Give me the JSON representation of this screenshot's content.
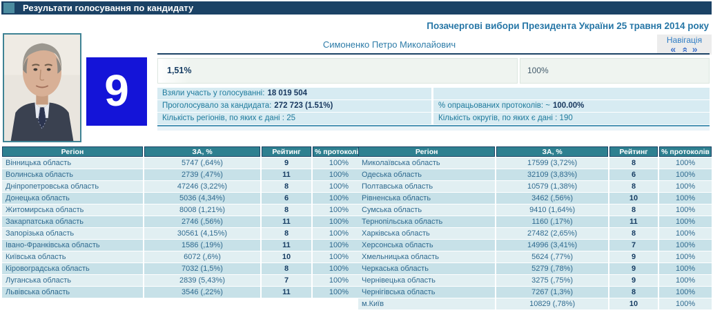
{
  "titlebar": {
    "title": "Результати голосування по кандидату"
  },
  "election_title": "Позачергові вибори Президента України 25 травня 2014 року",
  "navigation": {
    "label": "Навігація",
    "prev_icon": "«",
    "up_icon": "»",
    "next_icon": "»"
  },
  "candidate": {
    "name": "Симоненко Петро Миколайович",
    "number": "9",
    "vote_percent": "1,51%",
    "protocols_percent": "100%"
  },
  "stats": {
    "left": [
      {
        "label": "Взяли участь у голосуванні:",
        "value": "18 019 504"
      },
      {
        "label": "Проголосувало за кандидата:",
        "value": "272 723 (1.51%)"
      },
      {
        "label": "Кількість регіонів, по яких є дані : 25",
        "value": ""
      }
    ],
    "right": [
      {
        "label": "",
        "value": ""
      },
      {
        "label": "% опрацьованих протоколів: ~",
        "value": "100.00%"
      },
      {
        "label": "Кількість округів, по яких є дані : 190",
        "value": ""
      }
    ]
  },
  "tables": {
    "columns": [
      "Регіон",
      "ЗА, %",
      "Рейтинг",
      "% протоколів"
    ],
    "left_rows": [
      [
        "Вінницька область",
        "5747 (,64%)",
        "9",
        "100%"
      ],
      [
        "Волинська область",
        "2739 (,47%)",
        "11",
        "100%"
      ],
      [
        "Дніпропетровська область",
        "47246 (3,22%)",
        "8",
        "100%"
      ],
      [
        "Донецька область",
        "5036 (4,34%)",
        "6",
        "100%"
      ],
      [
        "Житомирська область",
        "8008 (1,21%)",
        "8",
        "100%"
      ],
      [
        "Закарпатська область",
        "2746 (,56%)",
        "11",
        "100%"
      ],
      [
        "Запорізька область",
        "30561 (4,15%)",
        "8",
        "100%"
      ],
      [
        "Івано-Франківська область",
        "1586 (,19%)",
        "11",
        "100%"
      ],
      [
        "Київська область",
        "6072 (,6%)",
        "10",
        "100%"
      ],
      [
        "Кіровоградська область",
        "7032 (1,5%)",
        "8",
        "100%"
      ],
      [
        "Луганська область",
        "2839 (5,43%)",
        "7",
        "100%"
      ],
      [
        "Львівська область",
        "3546 (,22%)",
        "11",
        "100%"
      ]
    ],
    "right_rows": [
      [
        "Миколаївська область",
        "17599 (3,72%)",
        "8",
        "100%"
      ],
      [
        "Одеська область",
        "32109 (3,83%)",
        "6",
        "100%"
      ],
      [
        "Полтавська область",
        "10579 (1,38%)",
        "8",
        "100%"
      ],
      [
        "Рівненська область",
        "3462 (,56%)",
        "10",
        "100%"
      ],
      [
        "Сумська область",
        "9410 (1,64%)",
        "8",
        "100%"
      ],
      [
        "Тернопільська область",
        "1160 (,17%)",
        "11",
        "100%"
      ],
      [
        "Харківська область",
        "27482 (2,65%)",
        "8",
        "100%"
      ],
      [
        "Херсонська область",
        "14996 (3,41%)",
        "7",
        "100%"
      ],
      [
        "Хмельницька область",
        "5624 (,77%)",
        "9",
        "100%"
      ],
      [
        "Черкаська область",
        "5279 (,78%)",
        "9",
        "100%"
      ],
      [
        "Чернівецька область",
        "3275 (,75%)",
        "9",
        "100%"
      ],
      [
        "Чернігівська область",
        "7267 (1,3%)",
        "8",
        "100%"
      ],
      [
        "м.Київ",
        "10829 (,78%)",
        "10",
        "100%"
      ]
    ]
  },
  "colors": {
    "titlebar_navy": "#1B4265",
    "titlebar_square_teal": "#4C8CA0",
    "table_header_teal": "#2E8090",
    "row_light": "#E1EFF2",
    "row_dark": "#C7E1E8",
    "number_box_blue": "#1414D8",
    "stats_row_bg": "#D7EBF2",
    "link_blue": "#2E7CA8"
  }
}
